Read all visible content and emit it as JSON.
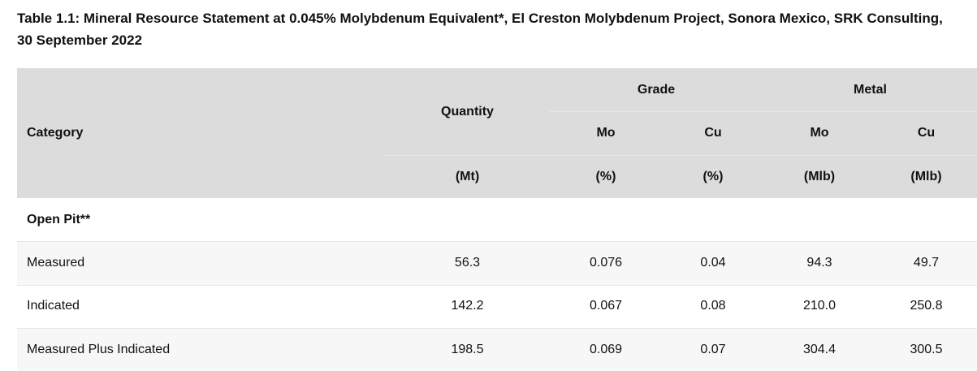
{
  "title": "Table 1.1: Mineral Resource Statement at 0.045% Molybdenum Equivalent*, El Creston Molybdenum Project, Sonora Mexico, SRK Consulting, 30 September 2022",
  "header": {
    "category": "Category",
    "quantity": "Quantity",
    "grade": "Grade",
    "metal": "Metal",
    "columns": [
      "Mo",
      "Cu",
      "Mo",
      "Cu"
    ],
    "units": [
      "(Mt)",
      "(%)",
      "(%)",
      "(Mlb)",
      "(Mlb)"
    ]
  },
  "table": {
    "sections": [
      {
        "label": "Open Pit**",
        "rows": [
          [
            "Measured",
            "56.3",
            "0.076",
            "0.04",
            "94.3",
            "49.7"
          ],
          [
            "Indicated",
            "142.2",
            "0.067",
            "0.08",
            "210.0",
            "250.8"
          ],
          [
            "Measured Plus Indicated",
            "198.5",
            "0.069",
            "0.07",
            "304.4",
            "300.5"
          ]
        ]
      }
    ]
  }
}
